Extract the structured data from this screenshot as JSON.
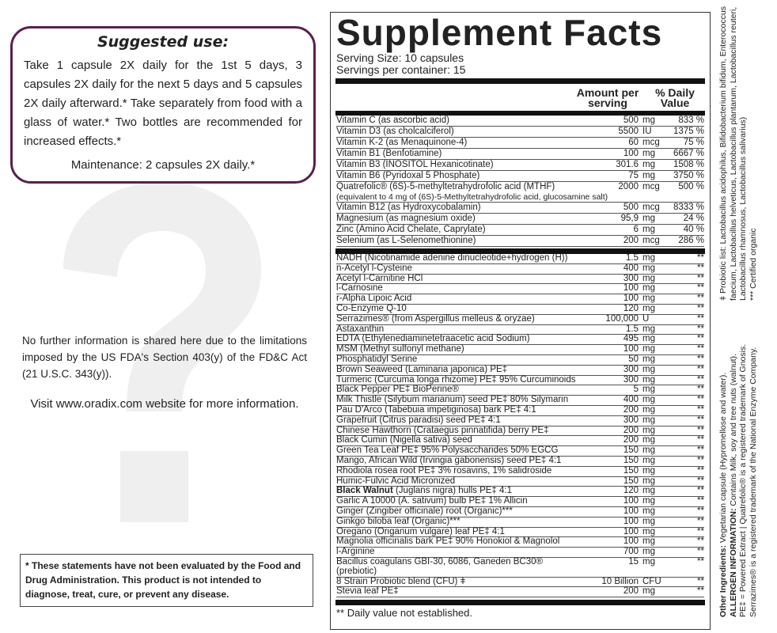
{
  "suggested": {
    "title": "Suggested use:",
    "text": "Take 1 capsule 2X daily for the 1st 5 days, 3 capsules 2X daily for the next 5 days and 5 capsules 2X daily afterward.* Take separately from food with a glass of water.* Two bottles are recommended for increased effects.*",
    "maintenance": "Maintenance: 2 capsules 2X daily.*"
  },
  "background_glyph": "?",
  "info": "No further information is shared here due to the limitations imposed by the US FDA's Section 403(y) of the FD&C Act (21 U.S.C. 343(y)).",
  "visit": "Visit www.oradix.com website for more information.",
  "disclaimer": "* These statements have not been evaluated by the Food and Drug Administration. This product is not intended to diagnose, treat, cure, or prevent any disease.",
  "facts": {
    "title": "Supplement Facts",
    "serving_size": "Serving Size: 10 capsules",
    "servings_per_container": "Servings per container: 15",
    "col_amount": "Amount per serving",
    "col_dv": "% Daily Value",
    "vitamins": [
      {
        "name": "Vitamin C (as ascorbic acid)",
        "amount": "500",
        "unit": "mg",
        "dv": "833 %"
      },
      {
        "name": "Vitamin D3 (as cholcalciferol)",
        "amount": "5500",
        "unit": "IU",
        "dv": "1375 %"
      },
      {
        "name": "Vitamin K-2 (as Menaquinone-4)",
        "amount": "60",
        "unit": "mcg",
        "dv": "75 %"
      },
      {
        "name": "Vitamin B1 (Benfotiamine)",
        "amount": "100",
        "unit": "mg",
        "dv": "6667 %"
      },
      {
        "name": "Vitamin B3 (INOSITOL Hexanicotinate)",
        "amount": "301.6",
        "unit": "mg",
        "dv": "1508 %"
      },
      {
        "name": "Vitamin B6 (Pyridoxal 5 Phosphate)",
        "amount": "75",
        "unit": "mg",
        "dv": "3750 %"
      },
      {
        "name": "Quatrefolic® (6S)-5-methyltetrahydrofolic acid (MTHF)",
        "sub": "(equivalent to 4 mg of (6S)-5-Methyltetrahydrofolic acid, glucosamine salt)",
        "amount": "2000",
        "unit": "mcg",
        "dv": "500 %"
      },
      {
        "name": "Vitamin B12 (as Hydroxycobalamin)",
        "amount": "500",
        "unit": "mcg",
        "dv": "8333 %"
      },
      {
        "name": "Magnesium (as magnesium oxide)",
        "amount": "95,9",
        "unit": "mg",
        "dv": "24 %"
      },
      {
        "name": "Zinc (Amino Acid Chelate, Caprylate)",
        "amount": "6",
        "unit": "mg",
        "dv": "40 %"
      },
      {
        "name": "Selenium (as L-Selenomethionine)",
        "amount": "200",
        "unit": "mcg",
        "dv": "286 %"
      }
    ],
    "others": [
      {
        "name": "NADH (Nicotinamide adenine dinucleotide+hydrogen (H))",
        "amount": "1.5",
        "unit": "mg",
        "dv": "**"
      },
      {
        "name": "n-Acetyl l-Cysteine",
        "amount": "400",
        "unit": "mg",
        "dv": "**"
      },
      {
        "name": "Acetyl l-Carnitine HCl",
        "amount": "300",
        "unit": "mg",
        "dv": "**"
      },
      {
        "name": "l-Carnosine",
        "amount": "100",
        "unit": "mg",
        "dv": "**"
      },
      {
        "name": "r-Alpha Lipoic Acid",
        "amount": "100",
        "unit": "mg",
        "dv": "**"
      },
      {
        "name": "Co-Enzyme Q-10",
        "amount": "120",
        "unit": "mg",
        "dv": "**"
      },
      {
        "name": "Serrazimes® (from Aspergillus melleus & oryzae)",
        "amount": "100,000",
        "unit": "U",
        "dv": "**"
      },
      {
        "name": "Astaxanthin",
        "amount": "1.5",
        "unit": "mg",
        "dv": "**"
      },
      {
        "name": "EDTA (Ethylenediaminetetraacetic  acid Sodium)",
        "amount": "495",
        "unit": "mg",
        "dv": "**"
      },
      {
        "name": "MSM (Methyl sulfonyl methane)",
        "amount": "100",
        "unit": "mg",
        "dv": "**"
      },
      {
        "name": "Phosphatidyl Serine",
        "amount": "50",
        "unit": "mg",
        "dv": "**"
      },
      {
        "name": "Brown Seaweed (Laminaria japonica) PE‡",
        "amount": "300",
        "unit": "mg",
        "dv": "**"
      },
      {
        "name": "Turmeric (Curcuma longa rhizome) PE‡ 95% Curcuminoids",
        "amount": "300",
        "unit": "mg",
        "dv": "**"
      },
      {
        "name": "Black Pepper PE‡ BioPerine®",
        "amount": "5",
        "unit": "mg",
        "dv": "**"
      },
      {
        "name": "Milk Thistle (Silybum marianum) seed PE‡ 80% Silymarin",
        "amount": "400",
        "unit": "mg",
        "dv": "**"
      },
      {
        "name": "Pau D'Arco (Tabebuia impetiginosa) bark PE‡ 4:1",
        "amount": "200",
        "unit": "mg",
        "dv": "**"
      },
      {
        "name": "Grapefruit (Citrus paradisi) seed PE‡ 4:1",
        "amount": "300",
        "unit": "mg",
        "dv": "**"
      },
      {
        "name": "Chinese Hawthorn (Crataegus pinnatifida) berry PE‡",
        "amount": "200",
        "unit": "mg",
        "dv": "**"
      },
      {
        "name": "Black Cumin (Nigella sativa) seed",
        "amount": "200",
        "unit": "mg",
        "dv": "**"
      },
      {
        "name": "Green Tea Leaf PE‡ 95% Polysaccharides 50% EGCG",
        "amount": "150",
        "unit": "mg",
        "dv": "**"
      },
      {
        "name": "Mango, African Wild (Irvingia gabonensis) seed PE‡ 4:1",
        "amount": "150",
        "unit": "mg",
        "dv": "**"
      },
      {
        "name": "Rhodiola rosea root PE‡ 3% rosavins, 1% salidroside",
        "amount": "150",
        "unit": "mg",
        "dv": "**"
      },
      {
        "name": "Humic-Fulvic Acid Micronized",
        "amount": "150",
        "unit": "mg",
        "dv": "**"
      },
      {
        "bold": "Black Walnut",
        "name": " (Juglans nigra) hulls PE‡ 4:1",
        "amount": "120",
        "unit": "mg",
        "dv": "**"
      },
      {
        "name": "Garlic A 10000 (A. sativum) bulb PE‡ 1% Allicin",
        "amount": "100",
        "unit": "mg",
        "dv": "**"
      },
      {
        "name": "Ginger (Zingiber officinale) root (Organic)***",
        "amount": "100",
        "unit": "mg",
        "dv": "**"
      },
      {
        "name": "Ginkgo biloba leaf (Organic)***",
        "amount": "100",
        "unit": "mg",
        "dv": "**"
      },
      {
        "name": "Oregano (Origanum vulgare) leaf PE‡ 4:1",
        "amount": "100",
        "unit": "mg",
        "dv": "**"
      },
      {
        "name": "Magnolia officinalis bark PE‡ 90% Honokiol & Magnolol",
        "amount": "100",
        "unit": "mg",
        "dv": "**"
      },
      {
        "name": "l-Arginine",
        "amount": "700",
        "unit": "mg",
        "dv": "**"
      },
      {
        "name": "Bacillus coagulans GBI-30, 6086, Ganeden BC30® (prebiotic)",
        "amount": "15",
        "unit": "mg",
        "dv": "**"
      },
      {
        "name": "8 Strain Probiotic blend (CFU) ǂ",
        "amount": "10 Billion",
        "unit": "CFU",
        "dv": "**"
      },
      {
        "name": "Stevia leaf PE‡",
        "amount": "200",
        "unit": "mg",
        "dv": "**"
      }
    ],
    "footnote": "** Daily value not established."
  },
  "side": {
    "other_label": "Other Ingredients:",
    "other": " Vegetarian capsule (Hypromellose and water).",
    "allergen_label": "ALLERGEN INFORMATION:",
    "allergen": " Contains Milk, soy and tree nuts (walnut).",
    "pe": "PE‡ = Powered Extract | Quatrefolic® is a registered trademark of Gnosis.",
    "serrazimes": "Serrazimes® is a registered trademark of the National Enzyme Company.",
    "probiotic": "ǂ Probiotic list: Lactobacillus acidophilus, Bifidobacterium bifidum, Enterococcus faecium, Lactobacillus helveticus, Lactobacillus plantarum, Lactobacillus reuteri, Lactobacillus rhamnosus, Lactobacillus salivarius)",
    "organic": "*** Certified organic"
  },
  "colors": {
    "frame": "#5b1f4f",
    "ink": "#111111",
    "watermark": "#efefef"
  }
}
